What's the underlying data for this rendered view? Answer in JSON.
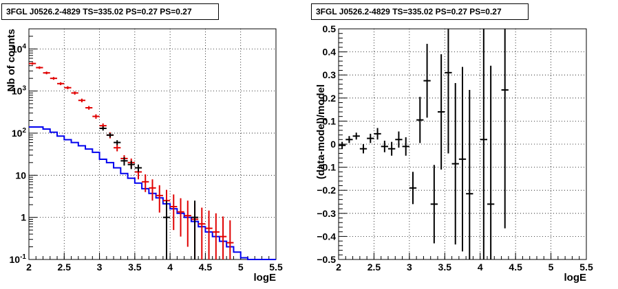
{
  "chart_data": [
    {
      "type": "line",
      "title": "3FGL J0526.2-4829 TS=335.02 PS=0.27 PS=0.27",
      "xlabel": "logE",
      "ylabel": "Nb of counts",
      "xlim": [
        2,
        5.5
      ],
      "ylim": [
        0.1,
        30000
      ],
      "yscale": "log",
      "grid": true,
      "xticks": [
        "2",
        "2.5",
        "3",
        "3.5",
        "4",
        "4.5",
        "5",
        "5.5"
      ],
      "yticks": [
        "10^-1",
        "1",
        "10",
        "10^2",
        "10^3",
        "10^4"
      ],
      "series": [
        {
          "name": "",
          "type": "step",
          "color": "#0000ee",
          "x_edges": [
            2.0,
            2.1,
            2.2,
            2.3,
            2.4,
            2.5,
            2.6,
            2.7,
            2.8,
            2.9,
            3.0,
            3.1,
            3.2,
            3.3,
            3.4,
            3.5,
            3.6,
            3.7,
            3.8,
            3.9,
            4.0,
            4.1,
            4.2,
            4.3,
            4.4,
            4.5,
            4.6,
            4.7,
            4.8,
            4.9,
            5.0,
            5.1,
            5.2,
            5.3,
            5.4,
            5.5
          ],
          "values": [
            140,
            140,
            125,
            105,
            85,
            70,
            60,
            50,
            42,
            35,
            24,
            20,
            15,
            11,
            8.5,
            6.5,
            4.8,
            3.7,
            2.9,
            2.1,
            1.6,
            1.25,
            1.0,
            0.8,
            0.6,
            0.45,
            0.35,
            0.27,
            0.2,
            0.15,
            0.11,
            0.1,
            0.1,
            0.1,
            0.1
          ]
        },
        {
          "name": "",
          "type": "errorbar",
          "color": "#e00000",
          "x": [
            2.05,
            2.15,
            2.25,
            2.35,
            2.45,
            2.55,
            2.65,
            2.75,
            2.85,
            2.95,
            3.05,
            3.15,
            3.25,
            3.35,
            3.45,
            3.55,
            3.65,
            3.75,
            3.85,
            3.95,
            4.05,
            4.15,
            4.25,
            4.35,
            4.45,
            4.55,
            4.65,
            4.75,
            4.85
          ],
          "y": [
            4500,
            3600,
            2700,
            2000,
            1500,
            1200,
            900,
            600,
            400,
            250,
            150,
            90,
            45,
            25,
            20,
            12,
            7,
            5,
            3.3,
            2.5,
            1.8,
            1.35,
            1.1,
            0.9,
            0.7,
            0.55,
            0.45,
            0.35,
            0.25
          ],
          "yerr_low": [
            300,
            250,
            200,
            150,
            120,
            100,
            80,
            60,
            40,
            30,
            20,
            15,
            8,
            5,
            5,
            4,
            3,
            2.5,
            2,
            1.6,
            1.3,
            1.0,
            0.9,
            0.8,
            0.6,
            0.5,
            0.42,
            0.33,
            0.24
          ],
          "yerr_high": [
            300,
            250,
            200,
            150,
            120,
            100,
            80,
            60,
            40,
            30,
            20,
            15,
            8,
            5,
            5,
            4,
            3.5,
            3,
            2.5,
            2,
            1.7,
            1.5,
            1.4,
            1.2,
            1.0,
            0.9,
            0.8,
            0.7,
            0.6
          ]
        },
        {
          "name": "",
          "type": "errorbar",
          "color": "#000000",
          "x": [
            3.05,
            3.15,
            3.25,
            3.35,
            3.45,
            3.55,
            3.95,
            4.35
          ],
          "y": [
            130,
            90,
            60,
            22,
            18,
            15,
            1,
            1
          ],
          "yerr_low": [
            15,
            10,
            8,
            5,
            4,
            3,
            0.95,
            0.9
          ],
          "yerr_high": [
            15,
            10,
            8,
            5,
            4,
            3,
            1.5,
            1.5
          ]
        }
      ]
    },
    {
      "type": "scatter",
      "title": "3FGL J0526.2-4829 TS=335.02 PS=0.27 PS=0.27",
      "xlabel": "logE",
      "ylabel": "(data-model)/model",
      "xlim": [
        2,
        5.5
      ],
      "ylim": [
        -0.5,
        0.5
      ],
      "grid": true,
      "xticks": [
        "2",
        "2.5",
        "3",
        "3.5",
        "4",
        "4.5",
        "5",
        "5.5"
      ],
      "yticks": [
        "−0.5",
        "−0.4",
        "−0.3",
        "−0.2",
        "−0.1",
        "0",
        "0.1",
        "0.2",
        "0.3",
        "0.4",
        "0.5"
      ],
      "series": [
        {
          "name": "",
          "type": "errorbar",
          "color": "#000000",
          "x": [
            2.05,
            2.15,
            2.25,
            2.35,
            2.45,
            2.55,
            2.65,
            2.75,
            2.85,
            2.95,
            3.05,
            3.15,
            3.25,
            3.35,
            3.45,
            3.55,
            3.65,
            3.75,
            3.85,
            4.05,
            4.15,
            4.35
          ],
          "y": [
            -0.005,
            0.02,
            0.035,
            -0.02,
            0.025,
            0.045,
            -0.01,
            -0.02,
            0.02,
            -0.01,
            -0.19,
            0.105,
            0.275,
            -0.26,
            0.14,
            0.31,
            -0.085,
            -0.065,
            -0.215,
            0.02,
            -0.26,
            0.235
          ],
          "yerr": [
            0.015,
            0.015,
            0.015,
            0.02,
            0.02,
            0.025,
            0.025,
            0.03,
            0.035,
            0.04,
            0.07,
            0.1,
            0.16,
            0.17,
            0.25,
            0.35,
            0.35,
            0.4,
            0.45,
            0.6,
            0.6,
            0.6
          ]
        }
      ]
    }
  ]
}
